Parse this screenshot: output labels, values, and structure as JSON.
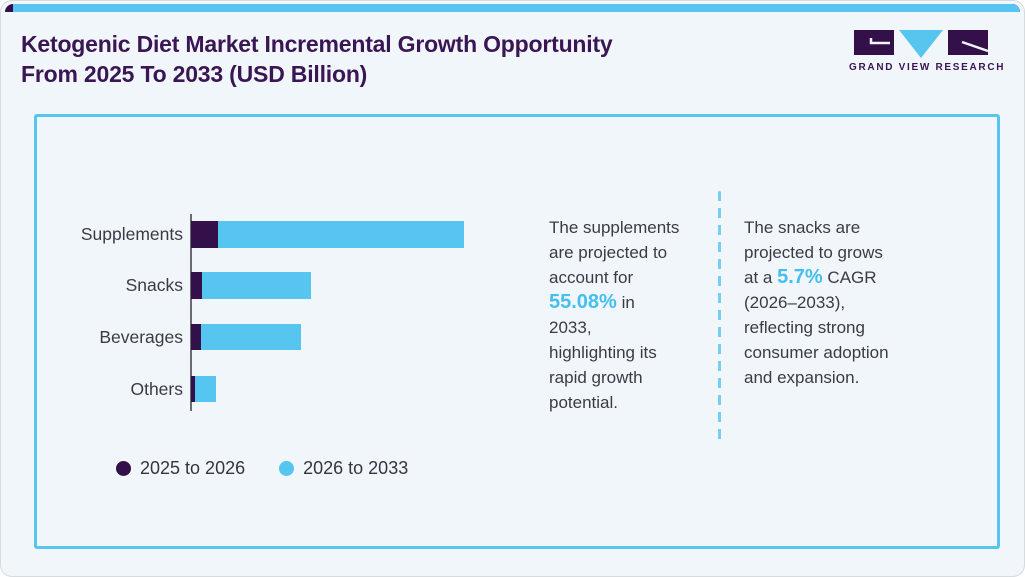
{
  "header": {
    "title": "Ketogenic Diet Market Incremental Growth Opportunity\nFrom 2025 To 2033 (USD Billion)",
    "logo_text": "GRAND VIEW RESEARCH"
  },
  "colors": {
    "accent_blue": "#56c5f0",
    "dark_purple": "#331049",
    "title_purple": "#3a1654",
    "body_text_gray": "#3b3b45",
    "highlight_blue": "#45bef0",
    "panel_background": "#f1f6fa"
  },
  "chart_data": {
    "type": "bar",
    "orientation": "horizontal",
    "stacked": true,
    "title": "Ketogenic Diet Market Incremental Growth Opportunity From 2025 To 2033 (USD Billion)",
    "xlabel": "",
    "ylabel": "",
    "grid": false,
    "numeric_axis_shown": false,
    "categories": [
      "Supplements",
      "Snacks",
      "Beverages",
      "Others"
    ],
    "series": [
      {
        "name": "2025 to 2026",
        "color": "#331049",
        "values_relative": [
          27,
          11,
          10,
          4
        ]
      },
      {
        "name": "2026 to 2033",
        "color": "#56c5f0",
        "values_relative": [
          246,
          109,
          100,
          21
        ]
      }
    ],
    "legend_position": "bottom-left",
    "note": "No numeric axis is shown in the figure; values are relative bar lengths (pixels) read from the image."
  },
  "callouts": {
    "supplements": {
      "full_text": "The supplements are projected to account for 55.08% in 2033, highlighting its rapid growth potential.",
      "parts": [
        {
          "text": "The supplements\nare projected to\naccount for\n",
          "highlight": false
        },
        {
          "text": "55.08%",
          "highlight": true
        },
        {
          "text": " in\n2033,\nhighlighting its\nrapid growth\npotential.",
          "highlight": false
        }
      ]
    },
    "snacks": {
      "full_text": "The snacks are projected to grows at a 5.7% CAGR (2026–2033), reflecting strong consumer adoption and expansion.",
      "parts": [
        {
          "text": "The snacks are\nprojected to grows\nat a ",
          "highlight": false
        },
        {
          "text": "5.7%",
          "highlight": true
        },
        {
          "text": " CAGR\n(2026–2033),\nreflecting strong\nconsumer adoption\nand expansion.",
          "highlight": false
        }
      ]
    }
  }
}
